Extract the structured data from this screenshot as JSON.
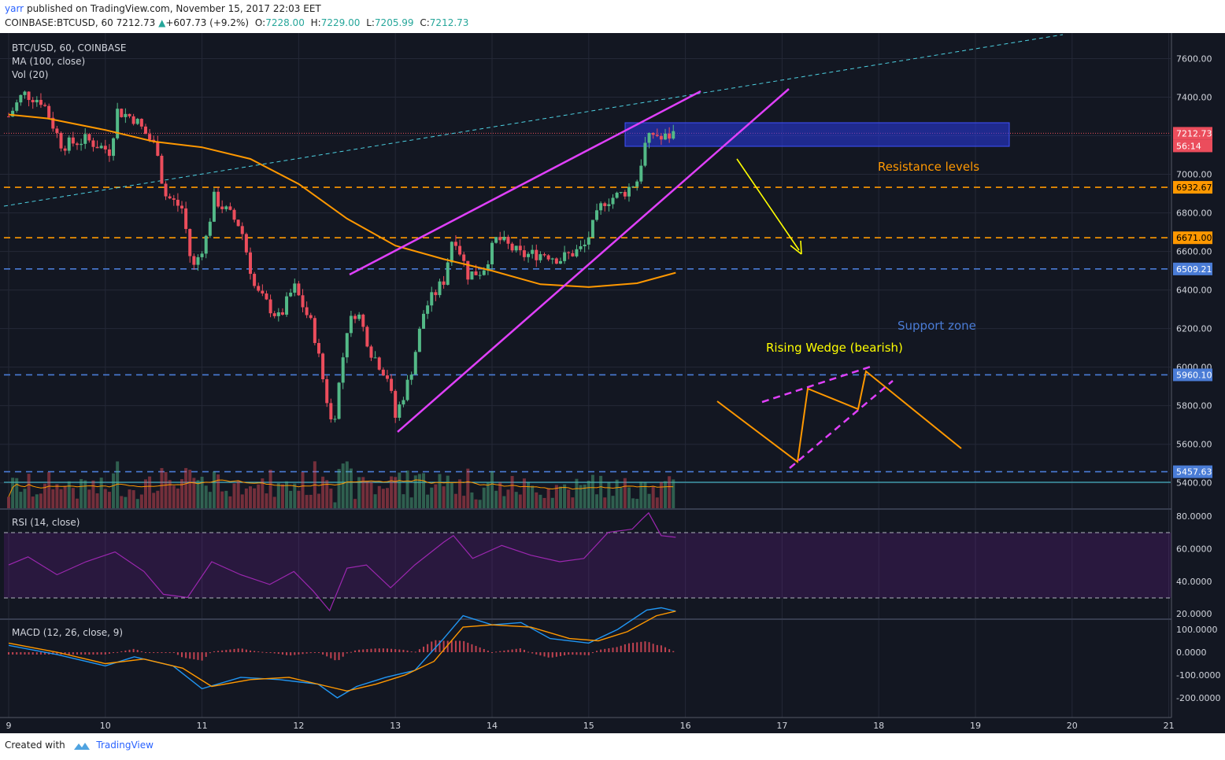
{
  "header": {
    "author": "yarr",
    "published_text": "published on TradingView.com, November 15, 2017 22:03 EET",
    "symbol_line": "COINBASE:BTCUSD, 60",
    "last": "7212.73",
    "change": "+607.73 (+9.2%)",
    "o_label": "O:",
    "o": "7228.00",
    "h_label": "H:",
    "h": "7229.00",
    "l_label": "L:",
    "l": "7205.99",
    "c_label": "C:",
    "c": "7212.73"
  },
  "legend": {
    "title": "BTC/USD, 60, COINBASE",
    "ma": "MA (100, close)",
    "vol": "Vol (20)",
    "rsi": "RSI (14, close)",
    "macd": "MACD (12, 26, close, 9)"
  },
  "annotations": {
    "resistance": "Resistance levels",
    "support": "Support zone",
    "wedge": "Rising Wedge (bearish)"
  },
  "footer": {
    "created_with": "Created with",
    "brand": "TradingView"
  },
  "colors": {
    "background": "#131722",
    "up": "#53b987",
    "down": "#eb4d5c",
    "ma": "#ff9800",
    "wedge": "#e040fb",
    "resistance": "#ff9800",
    "support": "#4a7cd6",
    "arrow": "#ffff00",
    "price_tag": "#eb4d5c"
  },
  "chart_data": [
    {
      "type": "candlestick",
      "title": "BTC/USD, 60, COINBASE",
      "x_ticks": [
        "9",
        "10",
        "11",
        "12",
        "13",
        "14",
        "15",
        "16",
        "17",
        "18",
        "19",
        "20",
        "21"
      ],
      "y_ticks": [
        "7600.00",
        "7400.00",
        "7200.00",
        "7000.00",
        "6800.00",
        "6600.00",
        "6400.00",
        "6200.00",
        "6000.00",
        "5800.00",
        "5600.00",
        "5400.00"
      ],
      "ylim": [
        5270,
        7830
      ],
      "last_price": {
        "value": 7212.73,
        "label": "7212.73",
        "countdown": "56:14"
      },
      "horizontal_levels": [
        {
          "value": 6932.67,
          "label": "6932.67",
          "kind": "resistance"
        },
        {
          "value": 6671.0,
          "label": "6671.00",
          "kind": "resistance"
        },
        {
          "value": 6509.21,
          "label": "6509.21",
          "kind": "support"
        },
        {
          "value": 5960.1,
          "label": "5960.10",
          "kind": "support"
        },
        {
          "value": 5457.63,
          "label": "5457.63",
          "kind": "support"
        }
      ],
      "price_path": [
        {
          "x": 9.0,
          "y": 7300
        },
        {
          "x": 9.15,
          "y": 7420
        },
        {
          "x": 9.35,
          "y": 7380
        },
        {
          "x": 9.55,
          "y": 7150
        },
        {
          "x": 9.8,
          "y": 7180
        },
        {
          "x": 10.05,
          "y": 7120
        },
        {
          "x": 10.12,
          "y": 7330
        },
        {
          "x": 10.3,
          "y": 7290
        },
        {
          "x": 10.55,
          "y": 7120
        },
        {
          "x": 10.6,
          "y": 6900
        },
        {
          "x": 10.8,
          "y": 6820
        },
        {
          "x": 10.9,
          "y": 6500
        },
        {
          "x": 11.05,
          "y": 6680
        },
        {
          "x": 11.12,
          "y": 6880
        },
        {
          "x": 11.4,
          "y": 6730
        },
        {
          "x": 11.55,
          "y": 6400
        },
        {
          "x": 11.8,
          "y": 6250
        },
        {
          "x": 11.95,
          "y": 6420
        },
        {
          "x": 12.15,
          "y": 6200
        },
        {
          "x": 12.35,
          "y": 5680
        },
        {
          "x": 12.5,
          "y": 6200
        },
        {
          "x": 12.6,
          "y": 6300
        },
        {
          "x": 12.75,
          "y": 6080
        },
        {
          "x": 12.92,
          "y": 5950
        },
        {
          "x": 13.0,
          "y": 5740
        },
        {
          "x": 13.15,
          "y": 5950
        },
        {
          "x": 13.3,
          "y": 6300
        },
        {
          "x": 13.5,
          "y": 6450
        },
        {
          "x": 13.6,
          "y": 6700
        },
        {
          "x": 13.75,
          "y": 6480
        },
        {
          "x": 13.9,
          "y": 6500
        },
        {
          "x": 14.05,
          "y": 6670
        },
        {
          "x": 14.3,
          "y": 6580
        },
        {
          "x": 14.55,
          "y": 6590
        },
        {
          "x": 14.7,
          "y": 6560
        },
        {
          "x": 14.95,
          "y": 6620
        },
        {
          "x": 15.15,
          "y": 6860
        },
        {
          "x": 15.35,
          "y": 6900
        },
        {
          "x": 15.5,
          "y": 6970
        },
        {
          "x": 15.58,
          "y": 7150
        },
        {
          "x": 15.68,
          "y": 7220
        },
        {
          "x": 15.75,
          "y": 7180
        },
        {
          "x": 15.88,
          "y": 7212.73
        }
      ],
      "ma_100": [
        {
          "x": 9.0,
          "y": 7310
        },
        {
          "x": 9.4,
          "y": 7290
        },
        {
          "x": 10.0,
          "y": 7230
        },
        {
          "x": 10.5,
          "y": 7170
        },
        {
          "x": 11.0,
          "y": 7140
        },
        {
          "x": 11.5,
          "y": 7080
        },
        {
          "x": 12.0,
          "y": 6950
        },
        {
          "x": 12.5,
          "y": 6770
        },
        {
          "x": 13.0,
          "y": 6630
        },
        {
          "x": 13.5,
          "y": 6560
        },
        {
          "x": 14.0,
          "y": 6500
        },
        {
          "x": 14.5,
          "y": 6430
        },
        {
          "x": 15.0,
          "y": 6415
        },
        {
          "x": 15.5,
          "y": 6435
        },
        {
          "x": 15.9,
          "y": 6490
        }
      ]
    },
    {
      "type": "line",
      "title": "RSI (14, close)",
      "y_ticks": [
        "80.0000",
        "60.0000",
        "40.0000",
        "20.0000"
      ],
      "ylim": [
        18,
        84
      ],
      "bands": [
        30,
        70
      ],
      "series": [
        {
          "values": [
            {
              "x": 9.0,
              "y": 50
            },
            {
              "x": 9.2,
              "y": 55
            },
            {
              "x": 9.5,
              "y": 44
            },
            {
              "x": 9.8,
              "y": 52
            },
            {
              "x": 10.1,
              "y": 58
            },
            {
              "x": 10.4,
              "y": 46
            },
            {
              "x": 10.6,
              "y": 32
            },
            {
              "x": 10.85,
              "y": 30
            },
            {
              "x": 11.1,
              "y": 52
            },
            {
              "x": 11.4,
              "y": 44
            },
            {
              "x": 11.7,
              "y": 38
            },
            {
              "x": 11.95,
              "y": 46
            },
            {
              "x": 12.15,
              "y": 34
            },
            {
              "x": 12.32,
              "y": 22
            },
            {
              "x": 12.5,
              "y": 48
            },
            {
              "x": 12.7,
              "y": 50
            },
            {
              "x": 12.95,
              "y": 36
            },
            {
              "x": 13.2,
              "y": 50
            },
            {
              "x": 13.5,
              "y": 64
            },
            {
              "x": 13.6,
              "y": 68
            },
            {
              "x": 13.8,
              "y": 54
            },
            {
              "x": 14.1,
              "y": 62
            },
            {
              "x": 14.4,
              "y": 56
            },
            {
              "x": 14.7,
              "y": 52
            },
            {
              "x": 14.95,
              "y": 54
            },
            {
              "x": 15.2,
              "y": 70
            },
            {
              "x": 15.45,
              "y": 72
            },
            {
              "x": 15.55,
              "y": 78
            },
            {
              "x": 15.62,
              "y": 82
            },
            {
              "x": 15.75,
              "y": 68
            },
            {
              "x": 15.9,
              "y": 67
            }
          ]
        }
      ]
    },
    {
      "type": "line",
      "title": "MACD (12, 26, close, 9)",
      "y_ticks": [
        "100.0000",
        "0.0000",
        "-100.0000",
        "-200.0000"
      ],
      "ylim": [
        -235,
        220
      ],
      "series": [
        {
          "values": [
            {
              "x": 9.0,
              "y": 30
            },
            {
              "x": 9.5,
              "y": -10
            },
            {
              "x": 10.0,
              "y": -60
            },
            {
              "x": 10.3,
              "y": -20
            },
            {
              "x": 10.7,
              "y": -60
            },
            {
              "x": 11.0,
              "y": -160
            },
            {
              "x": 11.4,
              "y": -110
            },
            {
              "x": 11.8,
              "y": -120
            },
            {
              "x": 12.2,
              "y": -140
            },
            {
              "x": 12.4,
              "y": -200
            },
            {
              "x": 12.6,
              "y": -150
            },
            {
              "x": 12.9,
              "y": -110
            },
            {
              "x": 13.2,
              "y": -80
            },
            {
              "x": 13.5,
              "y": 60
            },
            {
              "x": 13.7,
              "y": 160
            },
            {
              "x": 14.0,
              "y": 120
            },
            {
              "x": 14.3,
              "y": 130
            },
            {
              "x": 14.6,
              "y": 60
            },
            {
              "x": 15.0,
              "y": 40
            },
            {
              "x": 15.3,
              "y": 100
            },
            {
              "x": 15.6,
              "y": 185
            },
            {
              "x": 15.75,
              "y": 195
            },
            {
              "x": 15.9,
              "y": 180
            }
          ]
        },
        {
          "values": [
            {
              "x": 9.0,
              "y": 40
            },
            {
              "x": 9.5,
              "y": 0
            },
            {
              "x": 10.0,
              "y": -50
            },
            {
              "x": 10.4,
              "y": -30
            },
            {
              "x": 10.8,
              "y": -70
            },
            {
              "x": 11.1,
              "y": -150
            },
            {
              "x": 11.5,
              "y": -120
            },
            {
              "x": 11.9,
              "y": -110
            },
            {
              "x": 12.3,
              "y": -150
            },
            {
              "x": 12.5,
              "y": -170
            },
            {
              "x": 12.8,
              "y": -140
            },
            {
              "x": 13.1,
              "y": -100
            },
            {
              "x": 13.4,
              "y": -40
            },
            {
              "x": 13.7,
              "y": 110
            },
            {
              "x": 14.0,
              "y": 120
            },
            {
              "x": 14.4,
              "y": 110
            },
            {
              "x": 14.8,
              "y": 60
            },
            {
              "x": 15.1,
              "y": 50
            },
            {
              "x": 15.4,
              "y": 90
            },
            {
              "x": 15.7,
              "y": 160
            },
            {
              "x": 15.9,
              "y": 180
            }
          ]
        }
      ]
    }
  ]
}
